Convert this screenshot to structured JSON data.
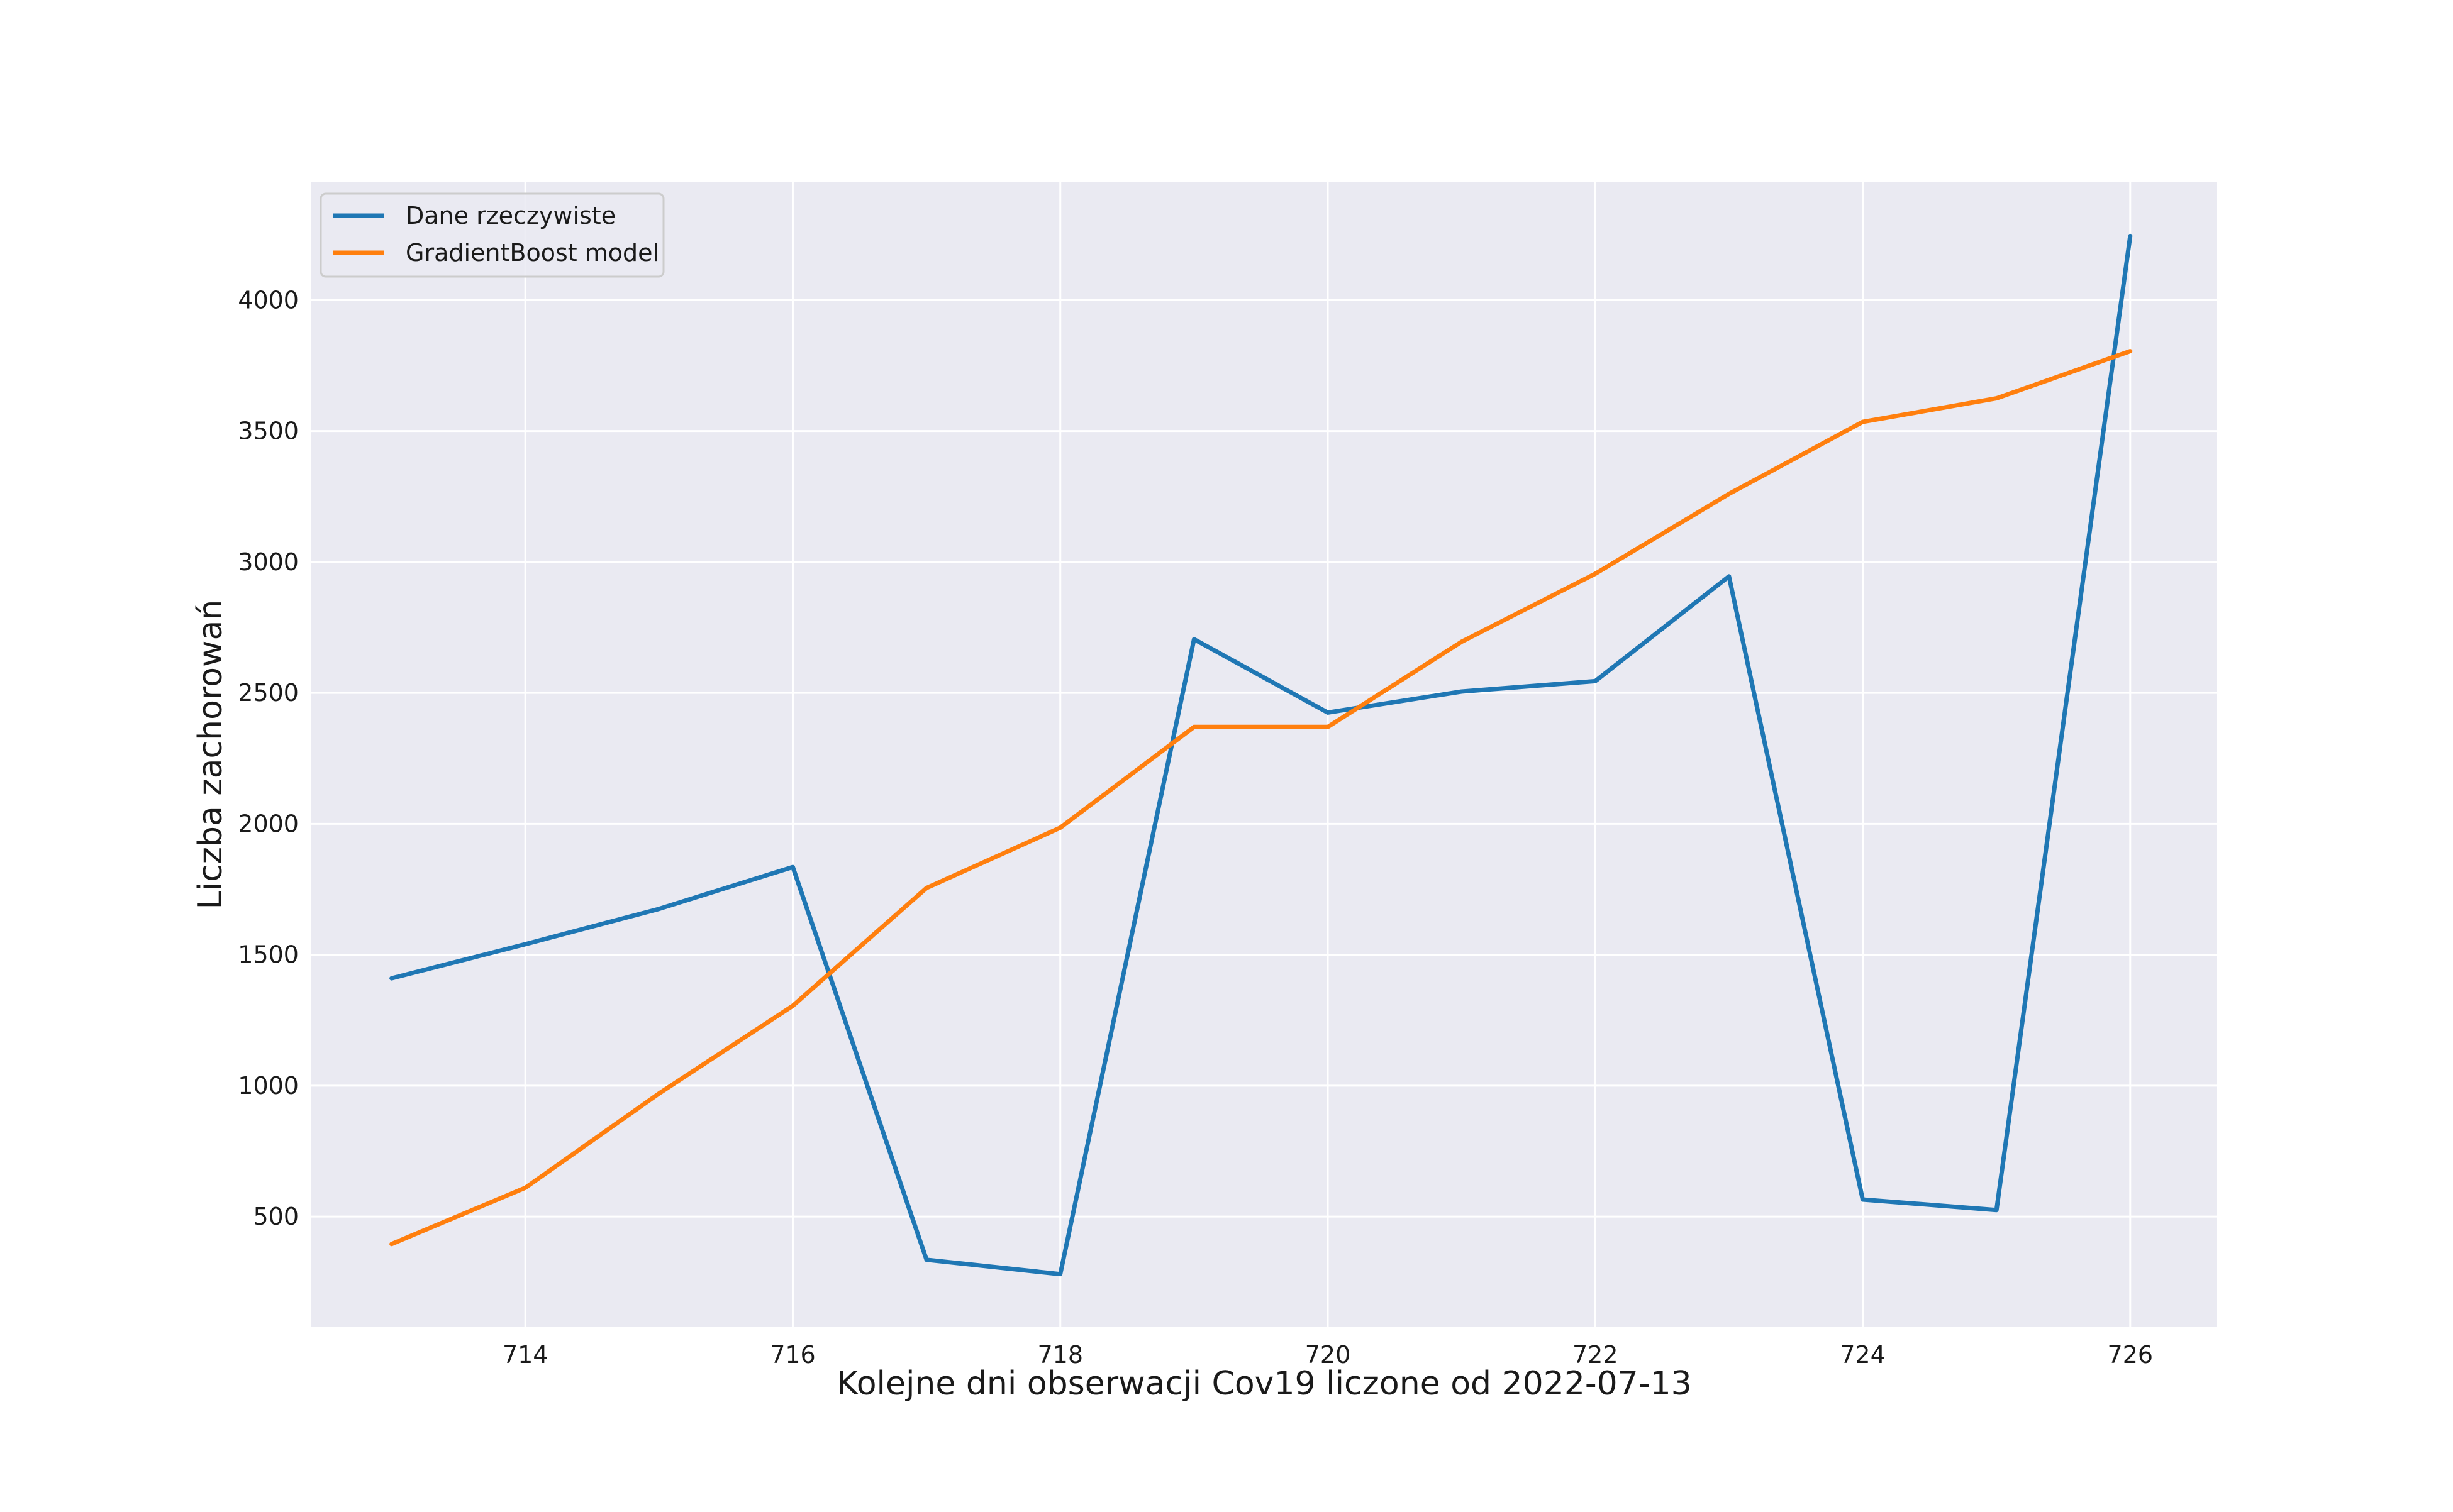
{
  "chart_data": {
    "type": "line",
    "title": "",
    "xlabel": "Kolejne dni obserwacji Cov19 liczone od 2022-07-13",
    "ylabel": "Liczba zachorowań",
    "x": [
      713,
      714,
      715,
      716,
      717,
      718,
      719,
      720,
      721,
      722,
      723,
      724,
      725,
      726
    ],
    "series": [
      {
        "name": "Dane rzeczywiste",
        "color": "#1f77b4",
        "values": [
          1410,
          1540,
          1675,
          1835,
          335,
          280,
          2705,
          2425,
          2505,
          2545,
          2945,
          565,
          525,
          4245
        ]
      },
      {
        "name": "GradientBoost model",
        "color": "#ff7f0e",
        "values": [
          395,
          610,
          970,
          1305,
          1755,
          1985,
          2370,
          2370,
          2695,
          2955,
          3260,
          3535,
          3625,
          3805
        ]
      }
    ],
    "xlim": [
      712.4,
      726.65
    ],
    "ylim": [
      80,
      4450
    ],
    "xticks": [
      "714",
      "716",
      "718",
      "720",
      "722",
      "724",
      "726"
    ],
    "yticks": [
      "500",
      "1000",
      "1500",
      "2000",
      "2500",
      "3000",
      "3500",
      "4000"
    ],
    "grid": true,
    "legend_position": "upper-left",
    "background_color": "#eaeaf2",
    "grid_color": "#ffffff"
  }
}
